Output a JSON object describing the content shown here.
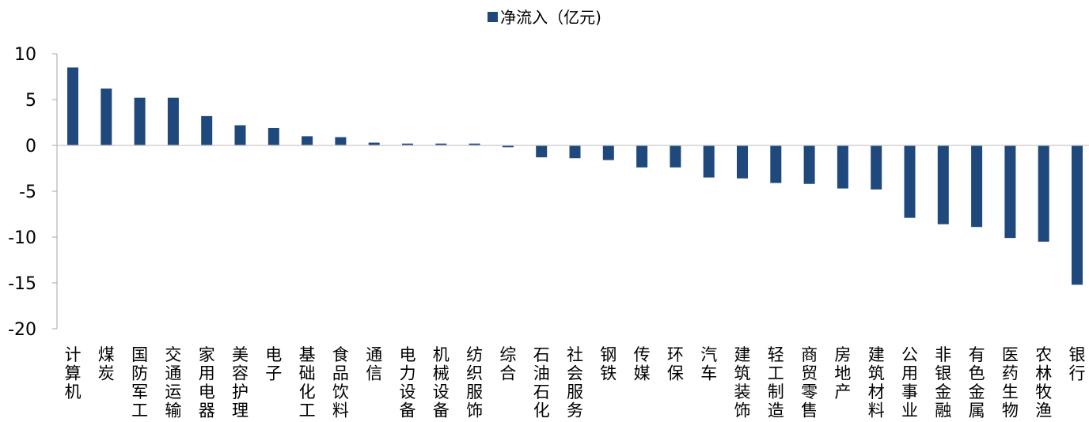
{
  "chart_data": {
    "type": "bar",
    "legend": {
      "label": "净流入（亿元)",
      "position": "top",
      "color": "#1f497d"
    },
    "categories": [
      "计算机",
      "煤炭",
      "国防军工",
      "交通运输",
      "家用电器",
      "美容护理",
      "电子",
      "基础化工",
      "食品饮料",
      "通信",
      "电力设备",
      "机械设备",
      "纺织服饰",
      "综合",
      "石油石化",
      "社会服务",
      "钢铁",
      "传媒",
      "环保",
      "汽车",
      "建筑装饰",
      "轻工制造",
      "商贸零售",
      "房地产",
      "建筑材料",
      "公用事业",
      "非银金融",
      "有色金属",
      "医药生物",
      "农林牧渔",
      "银行"
    ],
    "series": [
      {
        "name": "净流入（亿元)",
        "values": [
          8.5,
          6.2,
          5.2,
          5.2,
          3.2,
          2.2,
          1.9,
          1.0,
          0.9,
          0.3,
          0.2,
          0.2,
          0.2,
          -0.2,
          -1.3,
          -1.4,
          -1.6,
          -2.4,
          -2.4,
          -3.5,
          -3.6,
          -4.1,
          -4.2,
          -4.7,
          -4.8,
          -7.9,
          -8.6,
          -8.9,
          -10.1,
          -10.5,
          -15.2
        ]
      }
    ],
    "ylim": [
      -20,
      10
    ],
    "yticks": [
      10,
      5,
      0,
      -5,
      -10,
      -15,
      -20
    ],
    "grid": false
  }
}
